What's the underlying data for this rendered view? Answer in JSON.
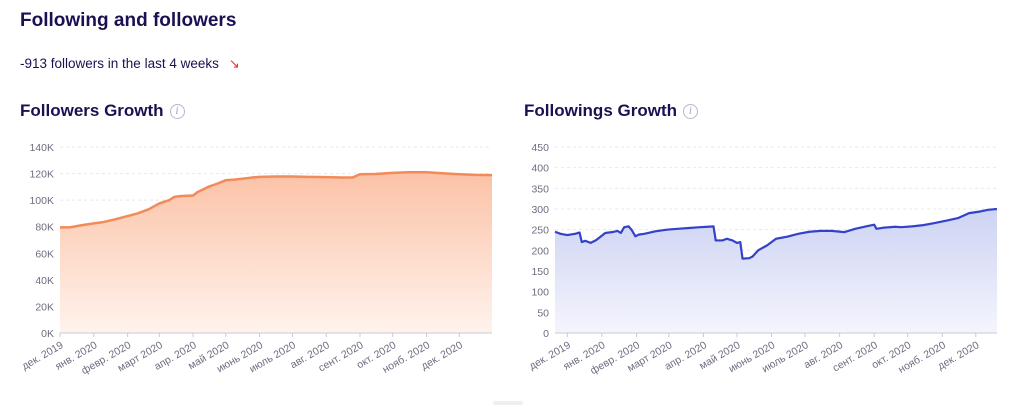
{
  "page": {
    "section_title": "Following and followers",
    "summary": "-913 followers in the last 4 weeks",
    "summary_arrow_icon": "trend-down-arrow-icon",
    "info_icon_glyph": "i"
  },
  "chart_data": [
    {
      "type": "area",
      "title": "Followers Growth",
      "color": "#f28a5a",
      "fill_top": "#fbc2a6",
      "fill_bottom": "#fff3ed",
      "xlabel": "",
      "ylabel": "",
      "ylim": [
        0,
        140000
      ],
      "yticks": [
        0,
        20000,
        40000,
        60000,
        80000,
        100000,
        120000,
        140000
      ],
      "ytick_labels": [
        "0K",
        "20K",
        "40K",
        "60K",
        "80K",
        "100K",
        "120K",
        "140K"
      ],
      "xlim": [
        "2019-12-01",
        "2020-12-31"
      ],
      "xtick_labels": [
        "дек. 2019",
        "янв. 2020",
        "февр. 2020",
        "март 2020",
        "апр. 2020",
        "май 2020",
        "июнь 2020",
        "июль 2020",
        "авг. 2020",
        "сент. 2020",
        "окт. 2020",
        "нояб. 2020",
        "дек. 2020"
      ],
      "xtick_dates": [
        "2019-12-01",
        "2020-01-01",
        "2020-02-01",
        "2020-03-01",
        "2020-04-01",
        "2020-05-01",
        "2020-06-01",
        "2020-07-01",
        "2020-08-01",
        "2020-09-01",
        "2020-10-01",
        "2020-11-01",
        "2020-12-01"
      ],
      "grid": true,
      "x": [
        "2019-12-01",
        "2019-12-10",
        "2019-12-20",
        "2020-01-01",
        "2020-01-10",
        "2020-01-20",
        "2020-02-01",
        "2020-02-10",
        "2020-02-20",
        "2020-03-01",
        "2020-03-10",
        "2020-03-15",
        "2020-03-20",
        "2020-03-25",
        "2020-04-01",
        "2020-04-05",
        "2020-04-10",
        "2020-04-15",
        "2020-04-20",
        "2020-04-25",
        "2020-05-01",
        "2020-05-10",
        "2020-05-15",
        "2020-05-25",
        "2020-06-01",
        "2020-06-15",
        "2020-07-01",
        "2020-07-15",
        "2020-08-01",
        "2020-08-15",
        "2020-08-25",
        "2020-09-01",
        "2020-09-15",
        "2020-10-01",
        "2020-10-15",
        "2020-11-01",
        "2020-11-15",
        "2020-12-01",
        "2020-12-15",
        "2020-12-31"
      ],
      "y": [
        79500,
        79500,
        81000,
        82500,
        83500,
        85500,
        88000,
        90000,
        93000,
        97500,
        100000,
        102500,
        103000,
        103200,
        103500,
        106000,
        108000,
        110000,
        111500,
        113000,
        115000,
        115500,
        116000,
        117000,
        117500,
        117800,
        117800,
        117500,
        117300,
        117000,
        117000,
        119500,
        119700,
        120500,
        121000,
        121000,
        120200,
        119500,
        119000,
        118800
      ]
    },
    {
      "type": "area",
      "title": "Followings Growth",
      "color": "#3342c9",
      "fill_top": "#cdd3f3",
      "fill_bottom": "#f4f5fd",
      "xlabel": "",
      "ylabel": "",
      "ylim": [
        0,
        450
      ],
      "yticks": [
        0,
        50,
        100,
        150,
        200,
        250,
        300,
        350,
        400,
        450
      ],
      "ytick_labels": [
        "0",
        "50",
        "100",
        "150",
        "200",
        "250",
        "300",
        "350",
        "400",
        "450"
      ],
      "xlim": [
        "2019-11-20",
        "2020-12-20"
      ],
      "xtick_labels": [
        "дек. 2019",
        "янв. 2020",
        "февр. 2020",
        "март 2020",
        "апр. 2020",
        "май 2020",
        "июнь 2020",
        "июль 2020",
        "авг. 2020",
        "сент. 2020",
        "окт. 2020",
        "нояб. 2020",
        "дек. 2020"
      ],
      "xtick_dates": [
        "2019-12-01",
        "2020-01-01",
        "2020-02-01",
        "2020-03-01",
        "2020-04-01",
        "2020-05-01",
        "2020-06-01",
        "2020-07-01",
        "2020-08-01",
        "2020-09-01",
        "2020-10-01",
        "2020-11-01",
        "2020-12-01"
      ],
      "grid": true,
      "x": [
        "2019-11-20",
        "2019-11-25",
        "2019-12-01",
        "2019-12-08",
        "2019-12-12",
        "2019-12-14",
        "2019-12-17",
        "2019-12-22",
        "2019-12-27",
        "2020-01-04",
        "2020-01-10",
        "2020-01-15",
        "2020-01-18",
        "2020-01-21",
        "2020-01-25",
        "2020-01-28",
        "2020-01-31",
        "2020-02-03",
        "2020-02-08",
        "2020-02-18",
        "2020-02-28",
        "2020-03-09",
        "2020-03-19",
        "2020-03-29",
        "2020-04-05",
        "2020-04-10",
        "2020-04-12",
        "2020-04-18",
        "2020-04-22",
        "2020-04-27",
        "2020-05-01",
        "2020-05-04",
        "2020-05-06",
        "2020-05-12",
        "2020-05-15",
        "2020-05-20",
        "2020-05-28",
        "2020-06-05",
        "2020-06-15",
        "2020-06-25",
        "2020-07-05",
        "2020-07-15",
        "2020-07-25",
        "2020-08-05",
        "2020-08-15",
        "2020-08-25",
        "2020-09-01",
        "2020-09-03",
        "2020-09-10",
        "2020-09-20",
        "2020-09-25",
        "2020-10-05",
        "2020-10-15",
        "2020-10-25",
        "2020-11-05",
        "2020-11-15",
        "2020-11-25",
        "2020-12-05",
        "2020-12-12",
        "2020-12-20"
      ],
      "y": [
        245,
        240,
        237,
        240,
        243,
        220,
        223,
        218,
        225,
        242,
        244,
        247,
        242,
        256,
        258,
        248,
        234,
        238,
        240,
        246,
        250,
        252,
        254,
        256,
        257,
        258,
        224,
        224,
        228,
        224,
        218,
        220,
        180,
        181,
        185,
        200,
        212,
        228,
        233,
        240,
        245,
        247,
        247,
        244,
        252,
        258,
        262,
        252,
        255,
        257,
        256,
        258,
        261,
        266,
        272,
        278,
        290,
        294,
        298,
        300
      ]
    }
  ]
}
